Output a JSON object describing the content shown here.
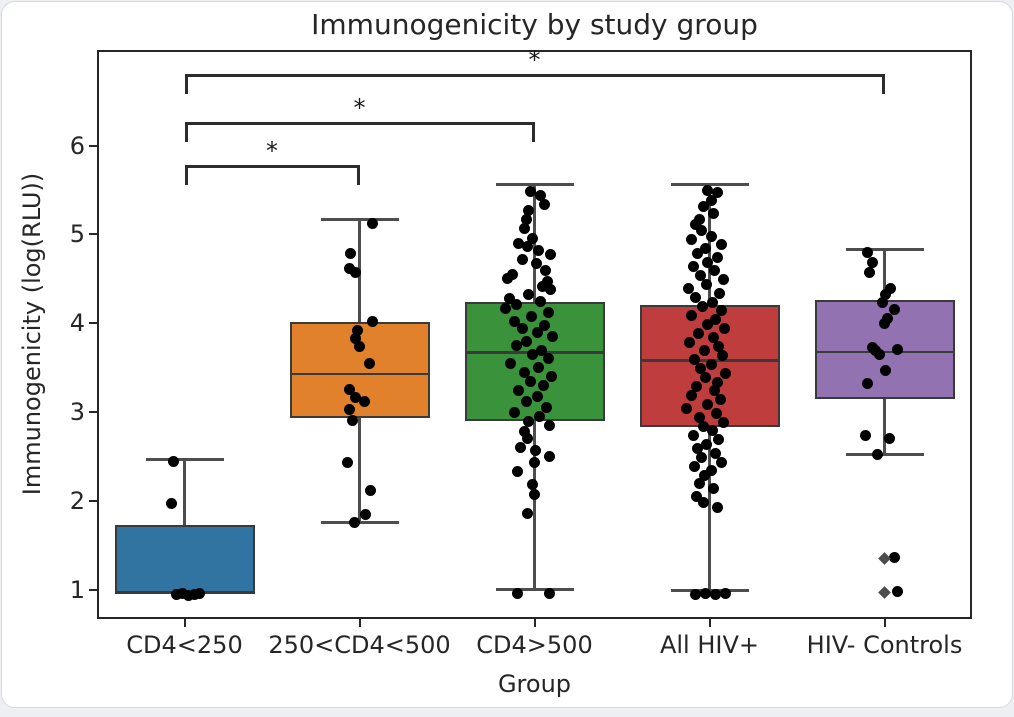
{
  "window": {
    "background": "#edeff2",
    "card_background": "#ffffff",
    "card_border": "#d7d9dd"
  },
  "chart_data": {
    "type": "box",
    "title": "Immunogenicity by study group",
    "xlabel": "Group",
    "ylabel": "Immunogenicity (log(RLU))",
    "ylim": [
      0.675,
      7.075
    ],
    "yticks": [
      1,
      2,
      3,
      4,
      5,
      6
    ],
    "grid": false,
    "legend": null,
    "text_color": "#262626",
    "box_edge_color": "#3a3a3a",
    "whisker_color": "#4d4d4d",
    "point_color": "#000000",
    "flier_color": "#4d4d4d",
    "categories": [
      "CD4<250",
      "250<CD4<500",
      "CD4>500",
      "All HIV+",
      "HIV- Controls"
    ],
    "groups": [
      {
        "label": "CD4<250",
        "color": "#3274a1",
        "q1": 0.96,
        "median": 0.98,
        "q3": 1.73,
        "whisker_low": 0.96,
        "whisker_high": 2.47,
        "fliers": [],
        "points": [
          [
            -11,
            2.45
          ],
          [
            -13,
            1.97
          ],
          [
            -8,
            0.95
          ],
          [
            -2,
            0.96
          ],
          [
            4,
            0.94
          ],
          [
            10,
            0.95
          ],
          [
            15,
            0.96
          ]
        ]
      },
      {
        "label": "250<CD4<500",
        "color": "#e1812c",
        "q1": 2.94,
        "median": 3.43,
        "q3": 4.01,
        "whisker_low": 1.76,
        "whisker_high": 5.17,
        "fliers": [],
        "points": [
          [
            13,
            5.12
          ],
          [
            -9,
            4.79
          ],
          [
            -10,
            4.62
          ],
          [
            -4,
            4.57
          ],
          [
            13,
            4.02
          ],
          [
            -2,
            3.92
          ],
          [
            -4,
            3.83
          ],
          [
            0,
            3.74
          ],
          [
            10,
            3.55
          ],
          [
            -10,
            3.26
          ],
          [
            -4,
            3.17
          ],
          [
            5,
            3.12
          ],
          [
            -10,
            3.03
          ],
          [
            -7,
            2.91
          ],
          [
            -12,
            2.44
          ],
          [
            11,
            2.12
          ],
          [
            6,
            1.85
          ],
          [
            -5,
            1.76
          ]
        ]
      },
      {
        "label": "CD4>500",
        "color": "#3a923a",
        "q1": 2.9,
        "median": 3.67,
        "q3": 4.24,
        "whisker_low": 1.01,
        "whisker_high": 5.56,
        "fliers": [],
        "points": [
          [
            -4,
            5.48
          ],
          [
            6,
            5.44
          ],
          [
            10,
            5.34
          ],
          [
            -6,
            5.27
          ],
          [
            -8,
            5.17
          ],
          [
            -10,
            5.07
          ],
          [
            -2,
            4.96
          ],
          [
            -16,
            4.9
          ],
          [
            -7,
            4.86
          ],
          [
            4,
            4.82
          ],
          [
            16,
            4.77
          ],
          [
            -12,
            4.72
          ],
          [
            2,
            4.67
          ],
          [
            11,
            4.6
          ],
          [
            -22,
            4.55
          ],
          [
            -27,
            4.5
          ],
          [
            13,
            4.47
          ],
          [
            8,
            4.42
          ],
          [
            16,
            4.38
          ],
          [
            -6,
            4.33
          ],
          [
            -25,
            4.28
          ],
          [
            6,
            4.25
          ],
          [
            -18,
            4.21
          ],
          [
            -29,
            4.17
          ],
          [
            14,
            4.12
          ],
          [
            -3,
            4.08
          ],
          [
            -20,
            4.02
          ],
          [
            10,
            3.98
          ],
          [
            -12,
            3.94
          ],
          [
            3,
            3.9
          ],
          [
            18,
            3.85
          ],
          [
            -8,
            3.8
          ],
          [
            -18,
            3.75
          ],
          [
            7,
            3.7
          ],
          [
            -2,
            3.65
          ],
          [
            14,
            3.6
          ],
          [
            -24,
            3.55
          ],
          [
            4,
            3.5
          ],
          [
            -10,
            3.45
          ],
          [
            17,
            3.4
          ],
          [
            -4,
            3.35
          ],
          [
            9,
            3.3
          ],
          [
            -16,
            3.25
          ],
          [
            3,
            3.18
          ],
          [
            -8,
            3.12
          ],
          [
            12,
            3.05
          ],
          [
            -20,
            3.0
          ],
          [
            5,
            2.95
          ],
          [
            -6,
            2.9
          ],
          [
            15,
            2.85
          ],
          [
            -10,
            2.78
          ],
          [
            -7,
            2.7
          ],
          [
            -14,
            2.6
          ],
          [
            1,
            2.57
          ],
          [
            15,
            2.5
          ],
          [
            0,
            2.44
          ],
          [
            -17,
            2.33
          ],
          [
            -2,
            2.19
          ],
          [
            0,
            2.07
          ],
          [
            -7,
            1.86
          ],
          [
            -17,
            0.96
          ],
          [
            15,
            0.96
          ]
        ]
      },
      {
        "label": "All HIV+",
        "color": "#c03d3e",
        "q1": 2.83,
        "median": 3.58,
        "q3": 4.21,
        "whisker_low": 1.0,
        "whisker_high": 5.56,
        "fliers": [],
        "points": [
          [
            -2,
            5.5
          ],
          [
            8,
            5.47
          ],
          [
            2,
            5.38
          ],
          [
            -6,
            5.31
          ],
          [
            4,
            5.24
          ],
          [
            -10,
            5.17
          ],
          [
            -14,
            5.11
          ],
          [
            -8,
            5.04
          ],
          [
            2,
            4.98
          ],
          [
            -18,
            4.94
          ],
          [
            12,
            4.89
          ],
          [
            -4,
            4.84
          ],
          [
            -12,
            4.79
          ],
          [
            8,
            4.74
          ],
          [
            -2,
            4.69
          ],
          [
            -16,
            4.64
          ],
          [
            5,
            4.59
          ],
          [
            -9,
            4.54
          ],
          [
            14,
            4.49
          ],
          [
            -3,
            4.44
          ],
          [
            -21,
            4.39
          ],
          [
            10,
            4.34
          ],
          [
            -14,
            4.29
          ],
          [
            3,
            4.24
          ],
          [
            -7,
            4.19
          ],
          [
            12,
            4.14
          ],
          [
            -18,
            4.09
          ],
          [
            6,
            4.04
          ],
          [
            -2,
            3.99
          ],
          [
            15,
            3.94
          ],
          [
            -11,
            3.89
          ],
          [
            4,
            3.84
          ],
          [
            -20,
            3.79
          ],
          [
            9,
            3.74
          ],
          [
            -5,
            3.69
          ],
          [
            13,
            3.64
          ],
          [
            -15,
            3.59
          ],
          [
            2,
            3.54
          ],
          [
            -9,
            3.49
          ],
          [
            16,
            3.44
          ],
          [
            -4,
            3.39
          ],
          [
            8,
            3.34
          ],
          [
            -13,
            3.29
          ],
          [
            5,
            3.24
          ],
          [
            -18,
            3.19
          ],
          [
            11,
            3.14
          ],
          [
            -2,
            3.09
          ],
          [
            -23,
            3.04
          ],
          [
            7,
            2.99
          ],
          [
            -10,
            2.94
          ],
          [
            14,
            2.89
          ],
          [
            -6,
            2.84
          ],
          [
            3,
            2.79
          ],
          [
            -16,
            2.74
          ],
          [
            9,
            2.69
          ],
          [
            -3,
            2.64
          ],
          [
            -12,
            2.59
          ],
          [
            6,
            2.54
          ],
          [
            -8,
            2.49
          ],
          [
            12,
            2.44
          ],
          [
            -15,
            2.39
          ],
          [
            2,
            2.34
          ],
          [
            -5,
            2.29
          ],
          [
            -10,
            2.2
          ],
          [
            4,
            2.14
          ],
          [
            -13,
            2.05
          ],
          [
            -6,
            1.98
          ],
          [
            8,
            1.93
          ],
          [
            -14,
            0.95
          ],
          [
            -4,
            0.96
          ],
          [
            6,
            0.95
          ],
          [
            16,
            0.96
          ]
        ]
      },
      {
        "label": "HIV- Controls",
        "color": "#9372b2",
        "q1": 3.15,
        "median": 3.68,
        "q3": 4.26,
        "whisker_low": 2.53,
        "whisker_high": 4.83,
        "fliers": [
          1.35,
          0.97
        ],
        "points": [
          [
            -17,
            4.8
          ],
          [
            -12,
            4.68
          ],
          [
            -15,
            4.57
          ],
          [
            6,
            4.39
          ],
          [
            1,
            4.32
          ],
          [
            -2,
            4.24
          ],
          [
            10,
            4.16
          ],
          [
            3,
            4.05
          ],
          [
            0,
            4.0
          ],
          [
            -12,
            3.73
          ],
          [
            13,
            3.71
          ],
          [
            -9,
            3.69
          ],
          [
            -5,
            3.65
          ],
          [
            1,
            3.47
          ],
          [
            -17,
            3.32
          ],
          [
            -19,
            2.74
          ],
          [
            5,
            2.7
          ],
          [
            -7,
            2.53
          ],
          [
            10,
            1.37
          ],
          [
            13,
            0.98
          ]
        ]
      }
    ],
    "significance_brackets": [
      {
        "a": 0,
        "b": 1,
        "label": "*",
        "y": 5.78
      },
      {
        "a": 0,
        "b": 2,
        "label": "*",
        "y": 6.26
      },
      {
        "a": 0,
        "b": 4,
        "label": "*",
        "y": 6.8
      }
    ]
  }
}
